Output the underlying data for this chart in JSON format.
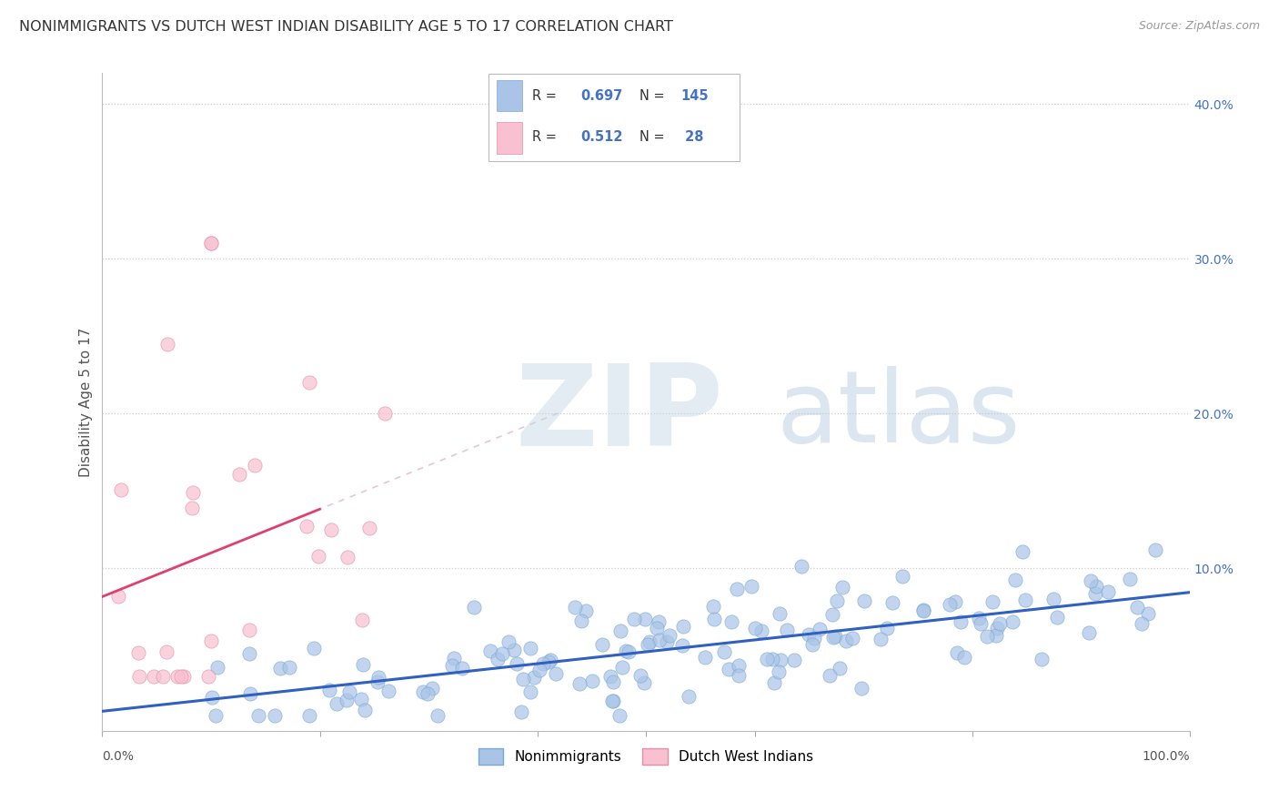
{
  "title": "NONIMMIGRANTS VS DUTCH WEST INDIAN DISABILITY AGE 5 TO 17 CORRELATION CHART",
  "source_text": "Source: ZipAtlas.com",
  "ylabel": "Disability Age 5 to 17",
  "watermark_zip": "ZIP",
  "watermark_atlas": "atlas",
  "xlim": [
    0.0,
    1.0
  ],
  "ylim": [
    -0.005,
    0.42
  ],
  "series1_color": "#aac4e8",
  "series1_edge": "#7aaad0",
  "series2_color": "#f8c0d0",
  "series2_edge": "#e090a8",
  "trend1_color": "#3060c0",
  "trend2_color": "#e04070",
  "dashed_color": "#e0a0b0",
  "R1": 0.697,
  "N1": 145,
  "R2": 0.512,
  "N2": 28,
  "legend_label1": "Nonimmigrants",
  "legend_label2": "Dutch West Indians",
  "legend_box_color": "#aac4e8",
  "legend_box2_color": "#f8c0d0",
  "stat_text_color": "#4472c4",
  "stat_label_color": "#333333"
}
